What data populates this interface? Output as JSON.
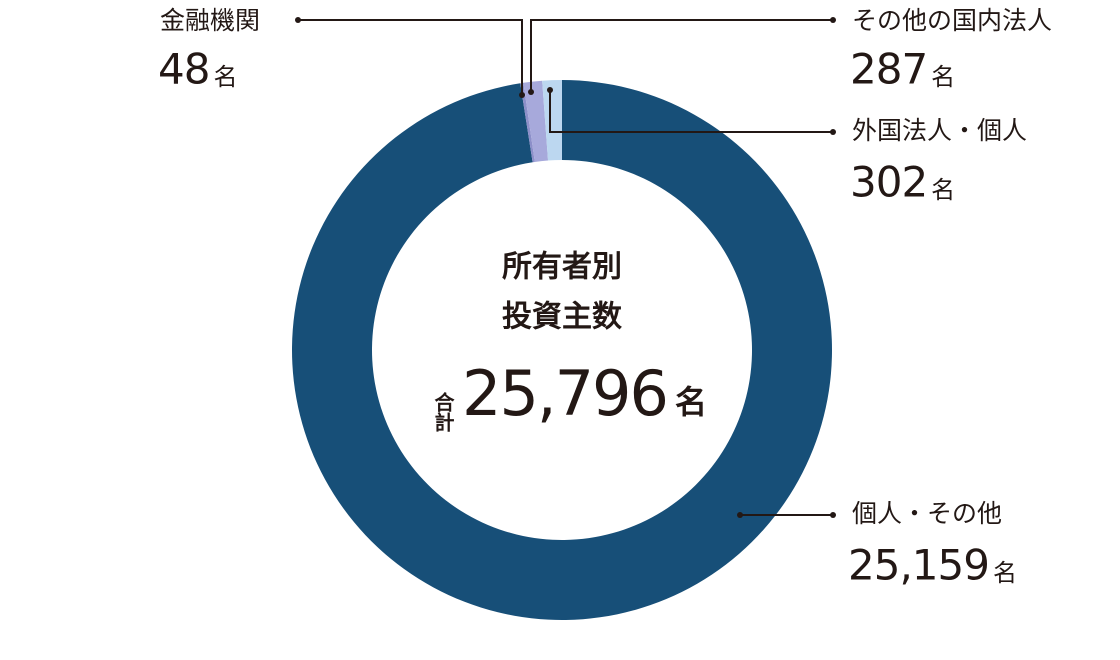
{
  "chart_data": {
    "type": "donut",
    "title_lines": [
      "所有者別",
      "投資主数"
    ],
    "total_caption": "合計",
    "total": {
      "value": 25796,
      "label": "25,796"
    },
    "unit": "名",
    "categories": [
      "個人・その他",
      "金融機関",
      "その他の国内法人",
      "外国法人・個人"
    ],
    "values": [
      25159,
      48,
      287,
      302
    ],
    "value_labels": [
      "25,159",
      "48",
      "287",
      "302"
    ],
    "colors": [
      "#174f78",
      "#8c8fc9",
      "#a7a9db",
      "#bcd7f0"
    ]
  }
}
